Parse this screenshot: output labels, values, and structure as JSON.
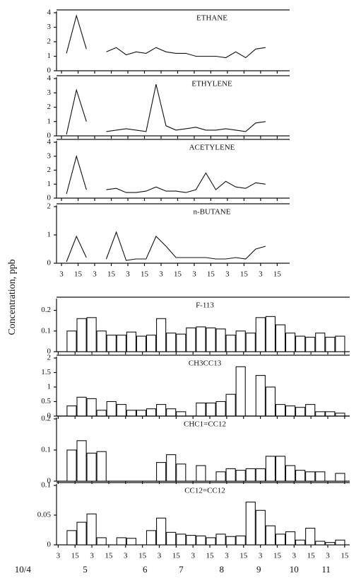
{
  "ylabel": "Concentration, ppb",
  "chart_data": [
    {
      "type": "line",
      "title": "ETHANE",
      "ylim": [
        0,
        4
      ],
      "yticks": [
        0,
        1,
        2,
        3,
        4
      ],
      "xlim": [
        -0.3,
        13.75
      ],
      "x": [
        0.3,
        0.9,
        1.5,
        2.1,
        2.7,
        3.3,
        3.9,
        4.5,
        5.1,
        5.7,
        6.3,
        6.9,
        7.5,
        8.1,
        8.7,
        9.3,
        9.9,
        10.5,
        11.1,
        11.7,
        12.3
      ],
      "values": [
        1.2,
        3.8,
        1.5,
        null,
        1.3,
        1.6,
        1.1,
        1.3,
        1.2,
        1.6,
        1.3,
        1.2,
        1.2,
        1.0,
        1.0,
        1.0,
        0.9,
        1.3,
        0.9,
        1.5,
        1.6
      ]
    },
    {
      "type": "line",
      "title": "ETHYLENE",
      "ylim": [
        0,
        4
      ],
      "yticks": [
        0,
        1,
        2,
        3,
        4
      ],
      "xlim": [
        -0.3,
        13.75
      ],
      "x": [
        0.3,
        0.9,
        1.5,
        2.1,
        2.7,
        3.3,
        3.9,
        4.5,
        5.1,
        5.7,
        6.3,
        6.9,
        7.5,
        8.1,
        8.7,
        9.3,
        9.9,
        10.5,
        11.1,
        11.7,
        12.3
      ],
      "values": [
        0.1,
        3.2,
        1.0,
        null,
        0.3,
        0.4,
        0.5,
        0.4,
        0.3,
        3.6,
        0.7,
        0.4,
        0.5,
        0.6,
        0.4,
        0.4,
        0.5,
        0.4,
        0.3,
        0.9,
        1.0
      ]
    },
    {
      "type": "line",
      "title": "ACETYLENE",
      "ylim": [
        0,
        4
      ],
      "yticks": [
        0,
        1,
        2,
        3,
        4
      ],
      "xlim": [
        -0.3,
        13.75
      ],
      "x": [
        0.3,
        0.9,
        1.5,
        2.1,
        2.7,
        3.3,
        3.9,
        4.5,
        5.1,
        5.7,
        6.3,
        6.9,
        7.5,
        8.1,
        8.7,
        9.3,
        9.9,
        10.5,
        11.1,
        11.7,
        12.3
      ],
      "values": [
        0.3,
        3.0,
        0.6,
        null,
        0.6,
        0.7,
        0.4,
        0.4,
        0.5,
        0.8,
        0.5,
        0.5,
        0.4,
        0.6,
        1.8,
        0.6,
        1.2,
        0.8,
        0.7,
        1.1,
        1.0
      ]
    },
    {
      "type": "line",
      "title": "n-BUTANE",
      "ylim": [
        0,
        2
      ],
      "yticks": [
        0,
        1,
        2
      ],
      "xlim": [
        -0.3,
        13.75
      ],
      "x": [
        0.3,
        0.9,
        1.5,
        2.1,
        2.7,
        3.3,
        3.9,
        4.5,
        5.1,
        5.7,
        6.3,
        6.9,
        7.5,
        8.1,
        8.7,
        9.3,
        9.9,
        10.5,
        11.1,
        11.7,
        12.3
      ],
      "values": [
        0.05,
        0.95,
        0.2,
        null,
        0.15,
        1.1,
        0.1,
        0.15,
        0.15,
        0.95,
        0.6,
        0.2,
        0.2,
        0.2,
        0.2,
        0.15,
        0.15,
        0.2,
        0.15,
        0.5,
        0.6
      ],
      "xticks": [
        {
          "value": 0,
          "label": "3"
        },
        {
          "value": 1,
          "label": "15"
        },
        {
          "value": 2,
          "label": "3"
        },
        {
          "value": 3,
          "label": "15"
        },
        {
          "value": 4,
          "label": "3"
        },
        {
          "value": 5,
          "label": "15"
        },
        {
          "value": 6,
          "label": "3"
        },
        {
          "value": 7,
          "label": "15"
        },
        {
          "value": 8,
          "label": "3"
        },
        {
          "value": 9,
          "label": "15"
        },
        {
          "value": 10,
          "label": "3"
        },
        {
          "value": 11,
          "label": "15"
        },
        {
          "value": 12,
          "label": "3"
        },
        {
          "value": 13,
          "label": "15"
        }
      ]
    },
    {
      "type": "bar",
      "title": "F-113",
      "ylim": [
        0,
        0.25
      ],
      "yticks": [
        0,
        0.1,
        0.2
      ],
      "xlim": [
        -0.1,
        17.3
      ],
      "x": [
        0.8,
        1.39,
        1.98,
        2.57,
        3.16,
        3.75,
        4.34,
        4.93,
        5.52,
        6.11,
        6.7,
        7.29,
        7.88,
        8.47,
        9.06,
        9.65,
        10.24,
        10.83,
        11.42,
        12.01,
        12.6,
        13.19,
        13.78,
        14.37,
        14.96,
        15.55,
        16.14,
        16.73
      ],
      "values": [
        0.1,
        0.16,
        0.165,
        0.1,
        0.08,
        0.08,
        0.095,
        0.075,
        0.08,
        0.16,
        0.09,
        0.085,
        0.115,
        0.12,
        0.115,
        0.11,
        0.08,
        0.1,
        0.09,
        0.165,
        0.17,
        0.13,
        0.09,
        0.075,
        0.07,
        0.09,
        0.07,
        0.075
      ]
    },
    {
      "type": "bar",
      "title": "CH3CC13",
      "ylim": [
        0,
        2
      ],
      "yticks": [
        0,
        0.5,
        1,
        1.5,
        2
      ],
      "xlim": [
        -0.1,
        17.3
      ],
      "x": [
        0.8,
        1.39,
        1.98,
        2.57,
        3.16,
        3.75,
        4.34,
        4.93,
        5.52,
        6.11,
        6.7,
        7.29,
        7.88,
        8.47,
        9.06,
        9.65,
        10.24,
        10.83,
        11.42,
        12.01,
        12.6,
        13.19,
        13.78,
        14.37,
        14.96,
        15.55,
        16.14,
        16.73
      ],
      "values": [
        0.35,
        0.65,
        0.6,
        0.2,
        0.5,
        0.4,
        0.2,
        0.2,
        0.25,
        0.4,
        0.25,
        0.15,
        null,
        0.45,
        0.45,
        0.5,
        0.75,
        1.7,
        null,
        1.4,
        1.0,
        0.4,
        0.35,
        0.3,
        0.4,
        0.15,
        0.15,
        0.1
      ]
    },
    {
      "type": "bar",
      "title": "CHC1=CC12",
      "ylim": [
        0,
        0.2
      ],
      "yticks": [
        0,
        0.1,
        0.2
      ],
      "xlim": [
        -0.1,
        17.3
      ],
      "x": [
        0.8,
        1.39,
        1.98,
        2.57,
        3.16,
        3.75,
        4.34,
        4.93,
        5.52,
        6.11,
        6.7,
        7.29,
        7.88,
        8.47,
        9.06,
        9.65,
        10.24,
        10.83,
        11.42,
        12.01,
        12.6,
        13.19,
        13.78,
        14.37,
        14.96,
        15.55,
        16.14,
        16.73
      ],
      "values": [
        0.1,
        0.13,
        0.09,
        0.095,
        null,
        null,
        null,
        null,
        null,
        0.06,
        0.085,
        0.055,
        null,
        0.05,
        null,
        0.03,
        0.04,
        0.035,
        0.04,
        0.04,
        0.08,
        0.08,
        0.05,
        0.035,
        0.03,
        0.03,
        null,
        0.025
      ]
    },
    {
      "type": "bar",
      "title": "CC12=CC12",
      "ylim": [
        0,
        0.1
      ],
      "yticks": [
        0,
        0.05,
        0.1
      ],
      "xlim": [
        -0.1,
        17.3
      ],
      "x": [
        0.8,
        1.39,
        1.98,
        2.57,
        3.16,
        3.75,
        4.34,
        4.93,
        5.52,
        6.11,
        6.7,
        7.29,
        7.88,
        8.47,
        9.06,
        9.65,
        10.24,
        10.83,
        11.42,
        12.01,
        12.6,
        13.19,
        13.78,
        14.37,
        14.96,
        15.55,
        16.14,
        16.73
      ],
      "values": [
        0.024,
        0.038,
        0.052,
        0.012,
        null,
        0.012,
        0.011,
        null,
        0.024,
        0.045,
        0.021,
        0.018,
        0.016,
        0.015,
        0.012,
        0.018,
        0.014,
        0.015,
        0.072,
        0.058,
        0.032,
        0.018,
        0.022,
        0.008,
        0.028,
        0.006,
        0.004,
        0.008
      ],
      "xticks": [
        {
          "value": 0,
          "label": "3"
        },
        {
          "value": 1,
          "label": "15"
        },
        {
          "value": 2,
          "label": "3"
        },
        {
          "value": 3,
          "label": "15"
        },
        {
          "value": 4,
          "label": "3"
        },
        {
          "value": 5,
          "label": "15"
        },
        {
          "value": 6,
          "label": "3"
        },
        {
          "value": 7,
          "label": "15"
        },
        {
          "value": 8,
          "label": "3"
        },
        {
          "value": 9,
          "label": "15"
        },
        {
          "value": 10,
          "label": "3"
        },
        {
          "value": 11,
          "label": "15"
        },
        {
          "value": 12,
          "label": "3"
        },
        {
          "value": 13,
          "label": "15"
        },
        {
          "value": 14,
          "label": "3"
        },
        {
          "value": 15,
          "label": "15"
        },
        {
          "value": 16,
          "label": "3"
        },
        {
          "value": 17,
          "label": "15"
        }
      ],
      "month_labels": [
        {
          "value": -2.1,
          "label": "10/4"
        },
        {
          "value": 1.6,
          "label": "5"
        },
        {
          "value": 5.15,
          "label": "6"
        },
        {
          "value": 7.3,
          "label": "7"
        },
        {
          "value": 9.7,
          "label": "8"
        },
        {
          "value": 11.9,
          "label": "9"
        },
        {
          "value": 14,
          "label": "10"
        },
        {
          "value": 15.9,
          "label": "11"
        }
      ]
    }
  ]
}
